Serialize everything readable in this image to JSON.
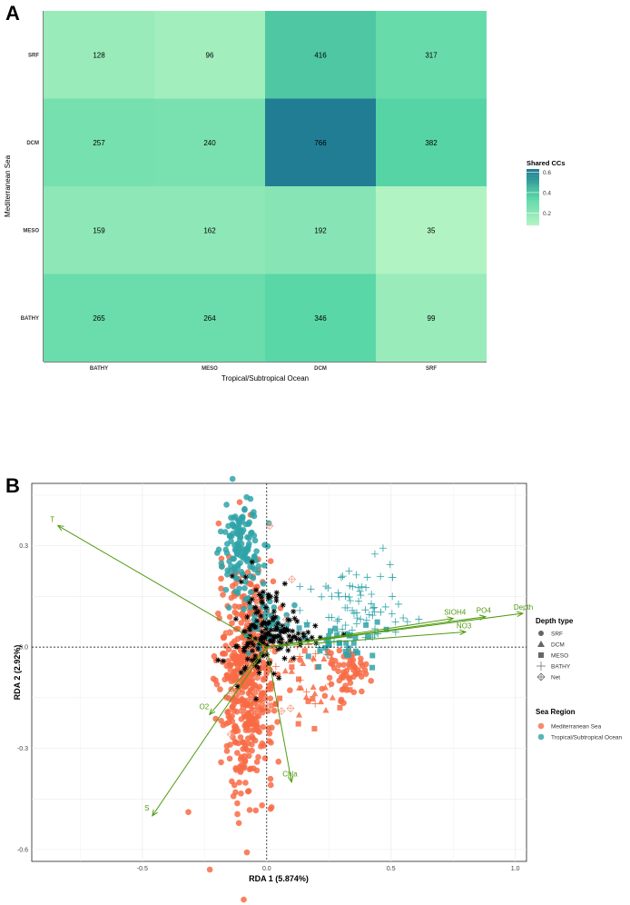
{
  "chart_data": [
    {
      "type": "heatmap",
      "panel_label": "A",
      "xlabel": "Tropical/Subtropical Ocean",
      "ylabel": "Mediterranean Sea",
      "x_categories": [
        "BATHY",
        "MESO",
        "DCM",
        "SRF"
      ],
      "y_categories": [
        "SRF",
        "DCM",
        "MESO",
        "BATHY"
      ],
      "values": [
        [
          128,
          96,
          416,
          317
        ],
        [
          257,
          240,
          766,
          382
        ],
        [
          159,
          162,
          192,
          35
        ],
        [
          265,
          264,
          346,
          99
        ]
      ],
      "fill": [
        [
          0.17,
          0.14,
          0.4,
          0.31
        ],
        [
          0.27,
          0.26,
          0.62,
          0.36
        ],
        [
          0.2,
          0.2,
          0.22,
          0.1
        ],
        [
          0.3,
          0.3,
          0.35,
          0.17
        ]
      ],
      "legend": {
        "title": "Shared CCs",
        "ticks": [
          "0.6",
          "0.4",
          "0.2"
        ],
        "tick_values": [
          0.6,
          0.4,
          0.2
        ],
        "range": [
          0.08,
          0.63
        ]
      },
      "colors": {
        "low": "#b8f5c4",
        "mid": "#58d6a6",
        "high": "#1f7a93"
      }
    },
    {
      "type": "scatter",
      "panel_label": "B",
      "xlabel": "RDA 1 (5.874%)",
      "ylabel": "RDA 2 (2.92%)",
      "xlim": [
        -0.945,
        1.045
      ],
      "ylim": [
        -0.635,
        0.485
      ],
      "x_ticks": [
        "-0.5",
        "0.0",
        "0.5",
        "1.0"
      ],
      "x_tick_values": [
        -0.5,
        0,
        0.5,
        1.0
      ],
      "y_ticks": [
        "0.3",
        "0.0",
        "-0.3",
        "-0.6"
      ],
      "y_tick_values": [
        0.3,
        0,
        -0.3,
        -0.6
      ],
      "arrows": [
        {
          "label": "T",
          "x": -0.84,
          "y": 0.36
        },
        {
          "label": "SIOH4",
          "x": 0.75,
          "y": 0.085
        },
        {
          "label": "PO4",
          "x": 0.88,
          "y": 0.09
        },
        {
          "label": "Depth",
          "x": 1.03,
          "y": 0.1
        },
        {
          "label": "NO3",
          "x": 0.8,
          "y": 0.045
        },
        {
          "label": "O2",
          "x": -0.23,
          "y": -0.2
        },
        {
          "label": "S",
          "x": -0.46,
          "y": -0.5
        },
        {
          "label": "Chla",
          "x": 0.1,
          "y": -0.4
        }
      ],
      "point_clusters": [
        {
          "region": "Mediterranean Sea",
          "depth": "SRF",
          "cx": -0.08,
          "cy": -0.1,
          "sx": 0.055,
          "sy": 0.16,
          "n": 520
        },
        {
          "region": "Tropical/Subtropical Ocean",
          "depth": "SRF",
          "cx": -0.1,
          "cy": 0.3,
          "sx": 0.04,
          "sy": 0.07,
          "n": 130
        },
        {
          "region": "Tropical/Subtropical Ocean",
          "depth": "SRF",
          "cx": -0.02,
          "cy": 0.1,
          "sx": 0.05,
          "sy": 0.05,
          "n": 40
        },
        {
          "region": "Mediterranean Sea",
          "depth": "SRF",
          "cx": 0.32,
          "cy": -0.08,
          "sx": 0.04,
          "sy": 0.04,
          "n": 60
        },
        {
          "region": "Mediterranean Sea",
          "depth": "DCM",
          "cx": 0.1,
          "cy": -0.1,
          "sx": 0.1,
          "sy": 0.06,
          "n": 20
        },
        {
          "region": "Mediterranean Sea",
          "depth": "MESO",
          "cx": 0.12,
          "cy": -0.13,
          "sx": 0.1,
          "sy": 0.06,
          "n": 15
        },
        {
          "region": "Tropical/Subtropical Ocean",
          "depth": "MESO",
          "cx": 0.3,
          "cy": 0.02,
          "sx": 0.08,
          "sy": 0.03,
          "n": 35
        },
        {
          "region": "Tropical/Subtropical Ocean",
          "depth": "BATHY",
          "cx": 0.38,
          "cy": 0.12,
          "sx": 0.11,
          "sy": 0.06,
          "n": 75
        },
        {
          "region": "Mediterranean Sea",
          "depth": "BATHY",
          "cx": 0.12,
          "cy": -0.06,
          "sx": 0.1,
          "sy": 0.05,
          "n": 15
        },
        {
          "region": "Net",
          "depth": "Net",
          "cx": -0.04,
          "cy": -0.05,
          "sx": 0.08,
          "sy": 0.15,
          "n": 25
        },
        {
          "region": "Net",
          "depth": "*",
          "cx": -0.02,
          "cy": 0.04,
          "sx": 0.06,
          "sy": 0.07,
          "n": 120
        },
        {
          "region": "Net",
          "depth": "*",
          "cx": 0.12,
          "cy": 0.04,
          "sx": 0.07,
          "sy": 0.02,
          "n": 40
        }
      ],
      "legend": {
        "depth_title": "Depth type",
        "depth_items": [
          "SRF",
          "DCM",
          "MESO",
          "BATHY",
          "Net"
        ],
        "region_title": "Sea Region",
        "region_items": [
          "Mediterranean Sea",
          "Tropical/Subtropical Ocean"
        ]
      },
      "colors": {
        "Mediterranean Sea": "#f86b45",
        "Tropical/Subtropical Ocean": "#2fa3a8",
        "arrow": "#4f9a10",
        "net": "#000000"
      }
    }
  ]
}
